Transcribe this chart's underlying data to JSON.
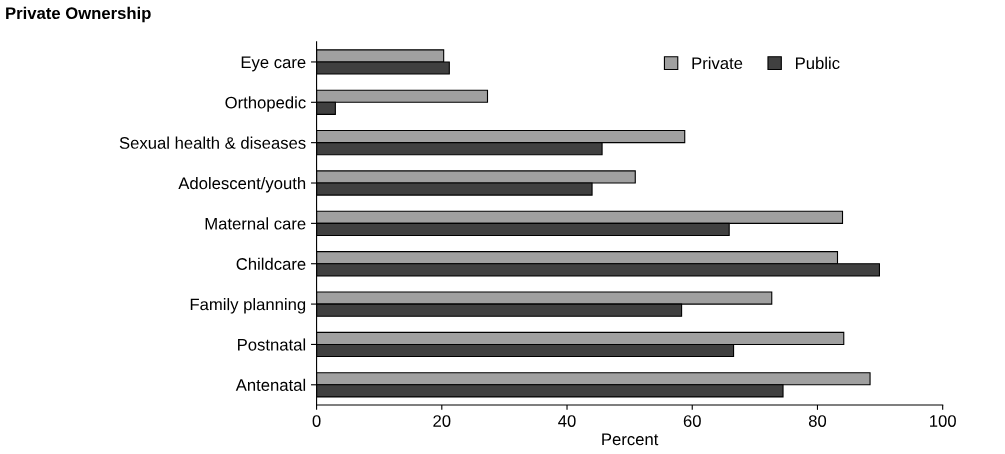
{
  "chart_data": {
    "type": "bar",
    "orientation": "horizontal",
    "title": "Private Ownership",
    "xlabel": "Percent",
    "categories": [
      "Eye care",
      "Orthopedic",
      "Sexual health & diseases",
      "Adolescent/youth",
      "Maternal care",
      "Childcare",
      "Family planning",
      "Postnatal",
      "Antenatal"
    ],
    "series": [
      {
        "name": "Private",
        "color": "#a0a0a0",
        "values": [
          20.3,
          27.3,
          58.8,
          50.9,
          84,
          83.2,
          72.7,
          84.2,
          88.4
        ]
      },
      {
        "name": "Public",
        "color": "#404040",
        "values": [
          21.2,
          3,
          45.6,
          44,
          65.9,
          89.9,
          58.3,
          66.6,
          74.5
        ]
      }
    ],
    "xlim": [
      0,
      100
    ],
    "xticks": [
      0,
      20,
      40,
      60,
      80,
      100
    ],
    "grid": false,
    "legend": "top right"
  }
}
